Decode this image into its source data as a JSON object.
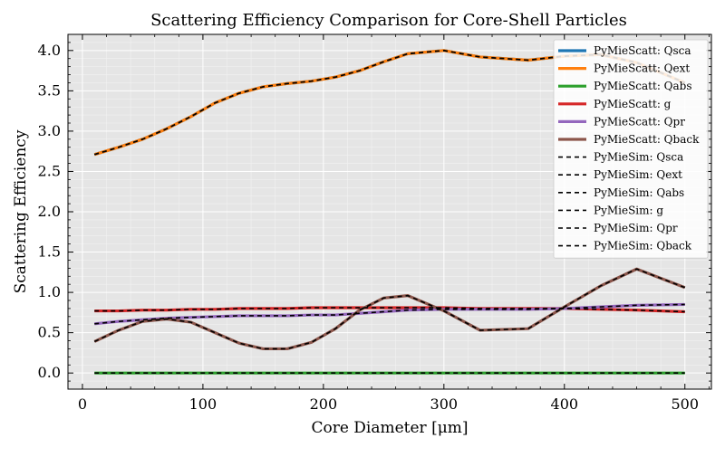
{
  "chart_data": {
    "type": "line",
    "title": "Scattering Efficiency Comparison for Core-Shell Particles",
    "xlabel": "Core Diameter [μm]",
    "ylabel": "Scattering Efficiency",
    "xlim": [
      -12,
      522
    ],
    "ylim": [
      -0.2,
      4.2
    ],
    "xticks": [
      0,
      100,
      200,
      300,
      400,
      500
    ],
    "yticks": [
      0.0,
      0.5,
      1.0,
      1.5,
      2.0,
      2.5,
      3.0,
      3.5,
      4.0
    ],
    "xtick_labels": [
      "0",
      "100",
      "200",
      "300",
      "400",
      "500"
    ],
    "ytick_labels": [
      "0.0",
      "0.5",
      "1.0",
      "1.5",
      "2.0",
      "2.5",
      "3.0",
      "3.5",
      "4.0"
    ],
    "grid": true,
    "legend_position": "top-right",
    "x": [
      10,
      30,
      50,
      70,
      90,
      110,
      130,
      150,
      170,
      190,
      210,
      230,
      250,
      270,
      300,
      330,
      370,
      400,
      430,
      460,
      500
    ],
    "series": [
      {
        "name": "PyMieScatt: Qsca",
        "color": "#1f77b4",
        "style": "solid",
        "values": [
          2.71,
          2.8,
          2.9,
          3.03,
          3.18,
          3.35,
          3.47,
          3.55,
          3.59,
          3.62,
          3.67,
          3.75,
          3.86,
          3.96,
          4.0,
          3.92,
          3.88,
          3.93,
          3.95,
          3.85,
          3.6
        ]
      },
      {
        "name": "PyMieScatt: Qext",
        "color": "#ff7f0e",
        "style": "solid",
        "values": [
          2.71,
          2.8,
          2.9,
          3.03,
          3.18,
          3.35,
          3.47,
          3.55,
          3.59,
          3.62,
          3.67,
          3.75,
          3.86,
          3.96,
          4.0,
          3.92,
          3.88,
          3.93,
          3.95,
          3.85,
          3.6
        ]
      },
      {
        "name": "PyMieScatt: Qabs",
        "color": "#2ca02c",
        "style": "solid",
        "values": [
          0,
          0,
          0,
          0,
          0,
          0,
          0,
          0,
          0,
          0,
          0,
          0,
          0,
          0,
          0,
          0,
          0,
          0,
          0,
          0,
          0
        ]
      },
      {
        "name": "PyMieScatt: g",
        "color": "#d62728",
        "style": "solid",
        "values": [
          0.77,
          0.77,
          0.78,
          0.78,
          0.79,
          0.79,
          0.8,
          0.8,
          0.8,
          0.81,
          0.81,
          0.81,
          0.81,
          0.81,
          0.81,
          0.8,
          0.8,
          0.8,
          0.79,
          0.78,
          0.76
        ]
      },
      {
        "name": "PyMieScatt: Qpr",
        "color": "#9467bd",
        "style": "solid",
        "values": [
          0.61,
          0.64,
          0.66,
          0.68,
          0.69,
          0.7,
          0.71,
          0.71,
          0.71,
          0.72,
          0.72,
          0.74,
          0.76,
          0.78,
          0.79,
          0.79,
          0.79,
          0.8,
          0.82,
          0.84,
          0.85
        ]
      },
      {
        "name": "PyMieScatt: Qback",
        "color": "#8c564b",
        "style": "solid",
        "values": [
          0.39,
          0.53,
          0.64,
          0.67,
          0.63,
          0.5,
          0.37,
          0.3,
          0.3,
          0.38,
          0.55,
          0.78,
          0.93,
          0.96,
          0.77,
          0.53,
          0.55,
          0.82,
          1.08,
          1.29,
          1.06
        ]
      },
      {
        "name": "PyMieSim: Qsca",
        "color": "#000000",
        "style": "dashed",
        "same_as": 0
      },
      {
        "name": "PyMieSim: Qext",
        "color": "#000000",
        "style": "dashed",
        "same_as": 1
      },
      {
        "name": "PyMieSim: Qabs",
        "color": "#000000",
        "style": "dashed",
        "same_as": 2
      },
      {
        "name": "PyMieSim: g",
        "color": "#000000",
        "style": "dashed",
        "same_as": 3
      },
      {
        "name": "PyMieSim: Qpr",
        "color": "#000000",
        "style": "dashed",
        "same_as": 4
      },
      {
        "name": "PyMieSim: Qback",
        "color": "#000000",
        "style": "dashed",
        "same_as": 5
      }
    ]
  }
}
